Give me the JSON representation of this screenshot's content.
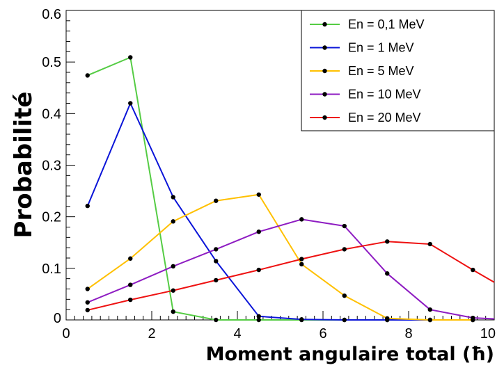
{
  "chart_data": {
    "type": "line",
    "title": "",
    "xlabel": "Moment angulaire total (ħ)",
    "ylabel": "Probabilité",
    "xlim": [
      0,
      10
    ],
    "ylim": [
      0,
      0.6
    ],
    "x_ticks": [
      "0",
      "2",
      "4",
      "6",
      "8",
      "10"
    ],
    "y_ticks": [
      "0",
      "0.1",
      "0.2",
      "0.3",
      "0.4",
      "0.5",
      "0.6"
    ],
    "legend_position": "top-right",
    "grid": false,
    "series": [
      {
        "name": "En = 0,1 MeV",
        "color": "#55cc44",
        "x": [
          0.5,
          1.5,
          2.5,
          3.5,
          4.5,
          5.5,
          6.5,
          7.5,
          8.5,
          9.5
        ],
        "y": [
          0.474,
          0.509,
          0.016,
          0.0,
          0.0,
          0.0,
          0.0,
          0.0,
          0.0,
          0.0
        ]
      },
      {
        "name": "En = 1 MeV",
        "color": "#0a14d8",
        "x": [
          0.5,
          1.5,
          2.5,
          3.5,
          4.5,
          5.5,
          6.5,
          7.5,
          8.5,
          9.5
        ],
        "y": [
          0.221,
          0.42,
          0.238,
          0.114,
          0.007,
          0.001,
          0.0,
          0.0,
          0.0,
          0.0
        ]
      },
      {
        "name": "En = 5 MeV",
        "color": "#ffc000",
        "x": [
          0.5,
          1.5,
          2.5,
          3.5,
          4.5,
          5.5,
          6.5,
          7.5,
          8.5,
          9.5
        ],
        "y": [
          0.06,
          0.119,
          0.191,
          0.231,
          0.243,
          0.108,
          0.047,
          0.003,
          0.0,
          0.0
        ]
      },
      {
        "name": "En = 10 MeV",
        "color": "#8e1cc2",
        "x": [
          0.5,
          1.5,
          2.5,
          3.5,
          4.5,
          5.5,
          6.5,
          7.5,
          8.5,
          9.5,
          10.0
        ],
        "y": [
          0.034,
          0.068,
          0.104,
          0.137,
          0.171,
          0.195,
          0.182,
          0.09,
          0.02,
          0.004,
          0.002
        ]
      },
      {
        "name": "En = 20 MeV",
        "color": "#ee1111",
        "x": [
          0.5,
          1.5,
          2.5,
          3.5,
          4.5,
          5.5,
          6.5,
          7.5,
          8.5,
          9.5,
          10.0
        ],
        "y": [
          0.019,
          0.039,
          0.057,
          0.077,
          0.097,
          0.118,
          0.137,
          0.152,
          0.147,
          0.097,
          0.073
        ]
      }
    ]
  }
}
